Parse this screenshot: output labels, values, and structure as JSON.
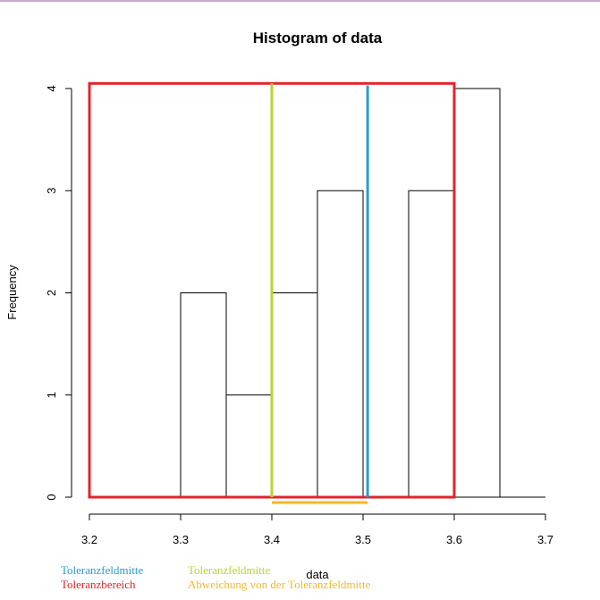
{
  "chart_data": {
    "type": "bar",
    "title": "Histogram of data",
    "xlabel": "data",
    "ylabel": "Frequency",
    "xlim": [
      3.2,
      3.7
    ],
    "ylim": [
      0,
      4
    ],
    "x_ticks": [
      "3.2",
      "3.3",
      "3.4",
      "3.5",
      "3.6",
      "3.7"
    ],
    "y_ticks": [
      "0",
      "1",
      "2",
      "3",
      "4"
    ],
    "bins": [
      {
        "from": 3.2,
        "to": 3.25,
        "count": 0
      },
      {
        "from": 3.25,
        "to": 3.3,
        "count": 0
      },
      {
        "from": 3.3,
        "to": 3.35,
        "count": 2
      },
      {
        "from": 3.35,
        "to": 3.4,
        "count": 1
      },
      {
        "from": 3.4,
        "to": 3.45,
        "count": 2
      },
      {
        "from": 3.45,
        "to": 3.5,
        "count": 3
      },
      {
        "from": 3.5,
        "to": 3.55,
        "count": 0
      },
      {
        "from": 3.55,
        "to": 3.6,
        "count": 3
      },
      {
        "from": 3.6,
        "to": 3.65,
        "count": 4
      },
      {
        "from": 3.65,
        "to": 3.7,
        "count": 0
      }
    ],
    "overlays": {
      "tolerance_range": {
        "x": [
          3.2,
          3.6
        ],
        "y": [
          0,
          4.05
        ],
        "color": "#e3232b"
      },
      "tolerance_center_nominal": {
        "x": 3.4,
        "color": "#b6d434"
      },
      "tolerance_center_actual": {
        "x": 3.505,
        "color": "#2a9ad6"
      },
      "deviation": {
        "from": 3.4,
        "to": 3.505,
        "color": "#f3b91f"
      }
    },
    "legend": [
      {
        "label": "Toleranzfeldmitte",
        "color": "#2a9ad6"
      },
      {
        "label": "Toleranzbereich",
        "color": "#e3232b"
      },
      {
        "label": "Toleranzfeldmitte",
        "color": "#b6d434"
      },
      {
        "label": "Abweichung von der Toleranzfeldmitte",
        "color": "#f3b91f"
      }
    ]
  }
}
